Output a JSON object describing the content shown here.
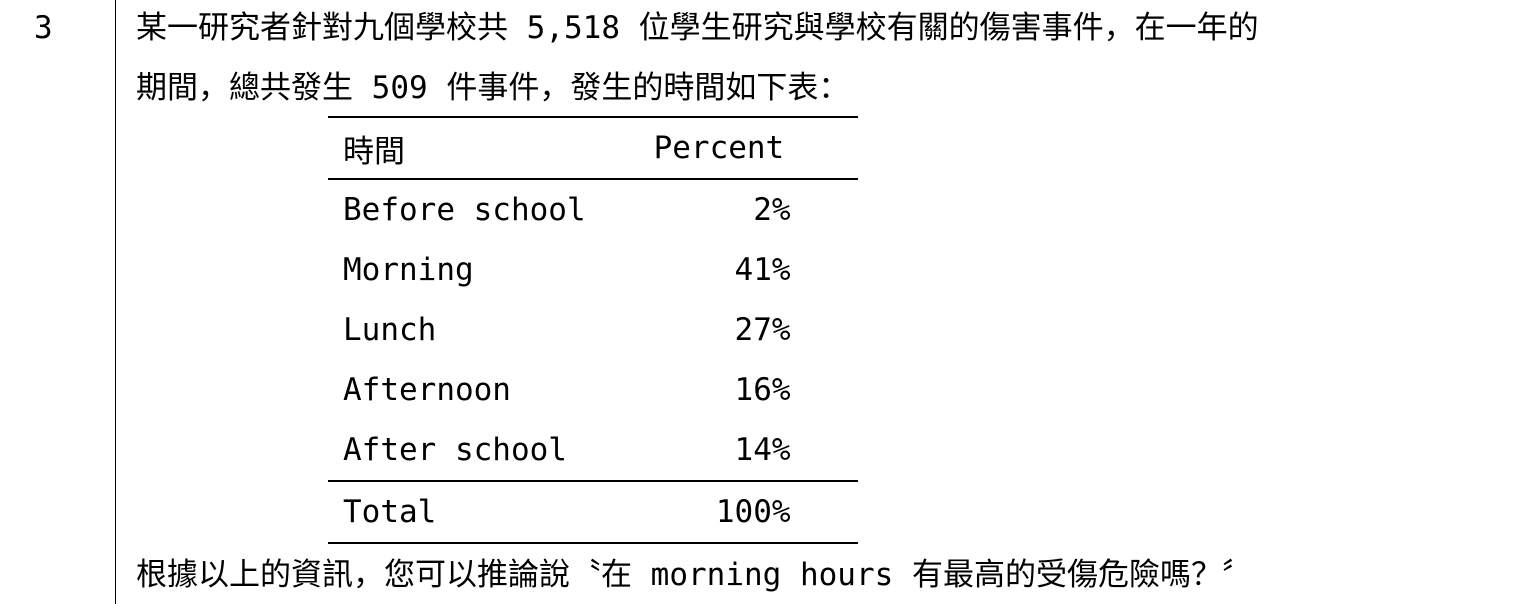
{
  "question": {
    "number": "3",
    "line1": "某一研究者針對九個學校共 5,518 位學生研究與學校有關的傷害事件，在一年的",
    "line2": "期間，總共發生 509 件事件，發生的時間如下表：",
    "line3": "根據以上的資訊，您可以推論說〝在 morning hours 有最高的受傷危險嗎？〞"
  },
  "table": {
    "headers": [
      "時間",
      "Percent"
    ],
    "rows": [
      {
        "time": "Before school",
        "percent": "2%"
      },
      {
        "time": "Morning",
        "percent": "41%"
      },
      {
        "time": "Lunch",
        "percent": "27%"
      },
      {
        "time": "Afternoon",
        "percent": "16%"
      },
      {
        "time": "After school",
        "percent": "14%"
      }
    ],
    "total": {
      "time": "Total",
      "percent": "100%"
    }
  },
  "chart_data": {
    "type": "table",
    "columns": [
      "時間",
      "Percent"
    ],
    "categories": [
      "Before school",
      "Morning",
      "Lunch",
      "Afternoon",
      "After school"
    ],
    "values": [
      2,
      41,
      27,
      16,
      14
    ],
    "total": 100
  }
}
